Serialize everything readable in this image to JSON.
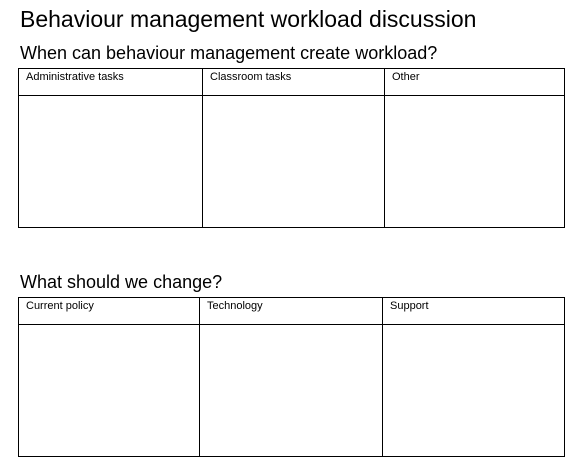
{
  "title": "Behaviour management workload discussion",
  "section1": {
    "heading": "When can behaviour management create workload?",
    "columns": [
      "Administrative tasks",
      "Classroom tasks",
      "Other"
    ]
  },
  "section2": {
    "heading": "What should we change?",
    "columns": [
      "Current policy",
      "Technology",
      "Support"
    ]
  }
}
